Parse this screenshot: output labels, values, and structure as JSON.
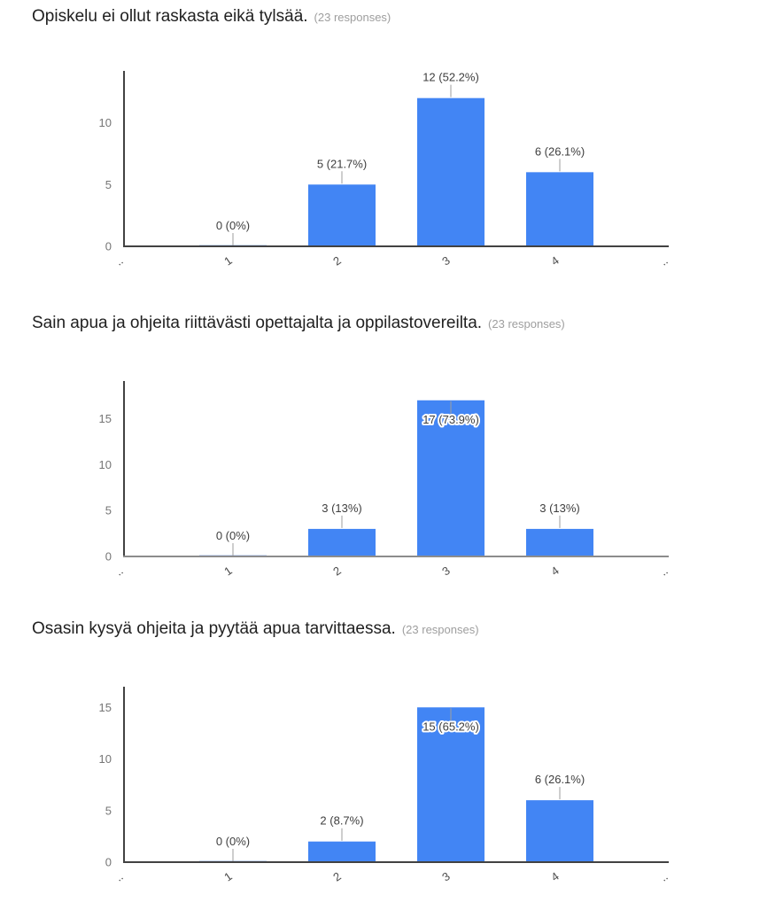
{
  "page": {
    "background": "#ffffff",
    "response_count_note": "(23 responses)"
  },
  "colors": {
    "bar": "#4285f4",
    "zero_bar_sliver": "#9bb9f3",
    "title_text": "#212121",
    "note_text": "#9e9e9e",
    "axis_line": "#424242",
    "ytick_text": "#757575",
    "xtick_text": "#4d4d4d",
    "annotation_text": "#3e3e3e",
    "annotation_stem": "#9e9e9e"
  },
  "questions": [
    {
      "title": "Opiskelu ei ollut raskasta eikä tylsää.",
      "note": "(23 responses)"
    },
    {
      "title": "Sain apua ja ohjeita riittävästi opettajalta ja oppilastovereilta.",
      "note": "(23 responses)"
    },
    {
      "title": "Osasin kysyä ohjeita ja pyytää apua tarvittaessa.",
      "note": "(23 responses)"
    }
  ],
  "chart_data": [
    {
      "type": "bar",
      "title": "Opiskelu ei ollut raskasta eikä tylsää.",
      "responses": 23,
      "categories": [
        "1",
        "2",
        "3",
        "4"
      ],
      "values": [
        0,
        5,
        12,
        6
      ],
      "data_labels": [
        "0 (0%)",
        "5 (21.7%)",
        "12 (52.2%)",
        "6 (26.1%)"
      ],
      "label_inside": [
        false,
        false,
        false,
        false
      ],
      "yticks": [
        0,
        5,
        10
      ],
      "ylim": [
        0,
        14.2
      ],
      "x_edge_labels": [
        "..",
        ".."
      ],
      "xlabel": "",
      "ylabel": "",
      "grid": false,
      "legend": "none",
      "baseline_color": "#424242"
    },
    {
      "type": "bar",
      "title": "Sain apua ja ohjeita riittävästi opettajalta ja oppilastovereilta.",
      "responses": 23,
      "categories": [
        "1",
        "2",
        "3",
        "4"
      ],
      "values": [
        0,
        3,
        17,
        3
      ],
      "data_labels": [
        "0 (0%)",
        "3 (13%)",
        "17 (73.9%)",
        "3 (13%)"
      ],
      "label_inside": [
        false,
        false,
        true,
        false
      ],
      "yticks": [
        0,
        5,
        10,
        15
      ],
      "ylim": [
        0,
        19.1
      ],
      "x_edge_labels": [
        "..",
        ".."
      ],
      "xlabel": "",
      "ylabel": "",
      "grid": false,
      "legend": "none",
      "baseline_color": "#8c8c8c"
    },
    {
      "type": "bar",
      "title": "Osasin kysyä ohjeita ja pyytää apua tarvittaessa.",
      "responses": 23,
      "categories": [
        "1",
        "2",
        "3",
        "4"
      ],
      "values": [
        0,
        2,
        15,
        6
      ],
      "data_labels": [
        "0 (0%)",
        "2 (8.7%)",
        "15 (65.2%)",
        "6 (26.1%)"
      ],
      "label_inside": [
        false,
        false,
        true,
        false
      ],
      "yticks": [
        0,
        5,
        10,
        15
      ],
      "ylim": [
        0,
        17.0
      ],
      "x_edge_labels": [
        "..",
        ".."
      ],
      "xlabel": "",
      "ylabel": "",
      "grid": false,
      "legend": "none",
      "baseline_color": "#424242"
    }
  ],
  "layout_tops": {
    "sections": [
      6,
      352,
      697
    ],
    "charts": [
      60,
      410,
      755
    ]
  }
}
